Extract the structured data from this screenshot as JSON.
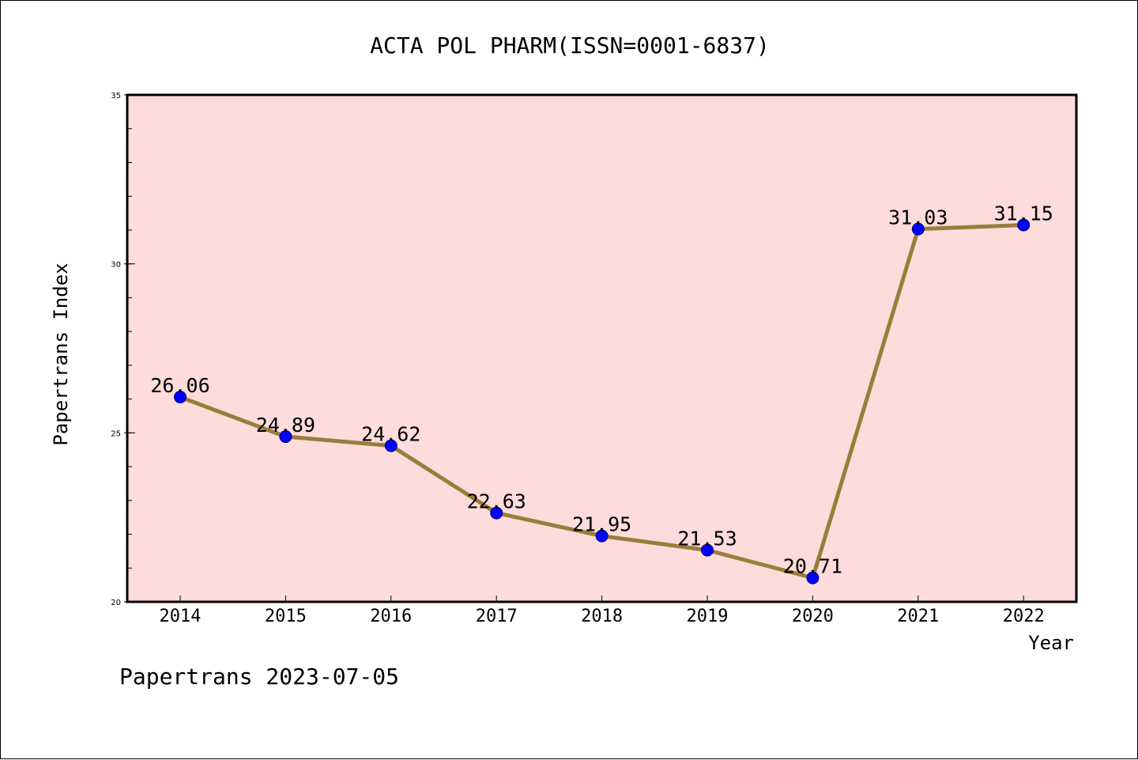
{
  "chart_data": {
    "type": "line",
    "title": "ACTA POL PHARM(ISSN=0001-6837)",
    "xlabel": "Year",
    "ylabel": "Papertrans Index",
    "categories": [
      "2014",
      "2015",
      "2016",
      "2017",
      "2018",
      "2019",
      "2020",
      "2021",
      "2022"
    ],
    "series": [
      {
        "values": [
          26.06,
          24.89,
          24.62,
          22.63,
          21.95,
          21.53,
          20.71,
          31.03,
          31.15
        ],
        "labels": [
          "26.06",
          "24.89",
          "24.62",
          "22.63",
          "21.95",
          "21.53",
          "20.71",
          "31.03",
          "31.15"
        ]
      }
    ],
    "ylim": [
      20,
      35
    ],
    "yticks": [
      "20",
      "25",
      "30",
      "35"
    ],
    "grid": false,
    "colors": {
      "plot_background": "#fddcdb",
      "line": "#9a7d3c",
      "marker": "#0000ff"
    }
  },
  "footer": "Papertrans 2023-07-05"
}
